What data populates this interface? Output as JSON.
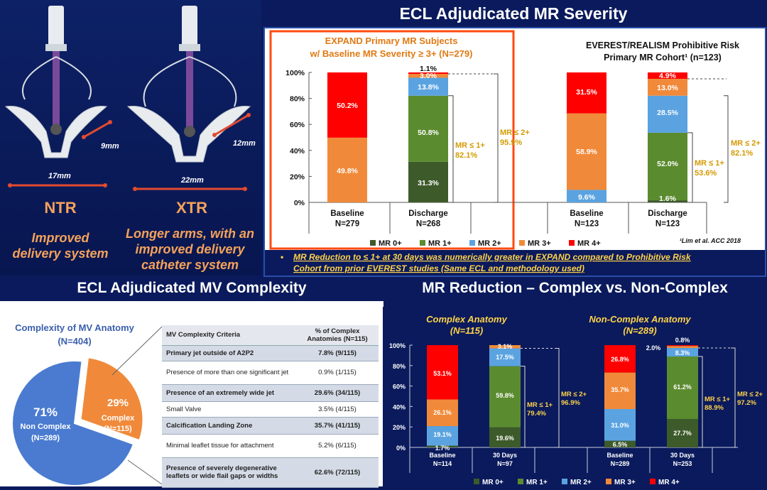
{
  "top_title": "ECL Adjudicated MR Severity",
  "devices": {
    "ntr": {
      "name": "NTR",
      "desc_line1": "Improved",
      "desc_line2": "delivery system",
      "arm": "9mm",
      "width": "17mm"
    },
    "xtr": {
      "name": "XTR",
      "desc_line1": "Longer arms, with an",
      "desc_line2": "improved delivery",
      "desc_line3": "catheter system",
      "arm": "12mm",
      "width": "22mm"
    }
  },
  "expand_heading_line1": "EXPAND Primary MR Subjects",
  "expand_heading_line2": "w/ Baseline MR Severity ≥ 3+ (N=279)",
  "everest_heading_line1": "EVEREST/REALISM Prohibitive Risk",
  "everest_heading_line2": "Primary MR Cohort¹ (n=123)",
  "citation": "¹Lim et al. ACC 2018",
  "bullet_line1": "MR Reduction to ≤ 1+ at 30 days was numerically greater in EXPAND compared to Prohibitive Risk",
  "bullet_line2": "Cohort from prior EVEREST studies (Same ECL and methodology used)",
  "mv_title": "ECL Adjudicated MV Complexity",
  "mrr_title": "MR Reduction – Complex vs. Non-Complex",
  "pie": {
    "title_line1": "Complexity of MV Anatomy",
    "title_line2": "(N=404)",
    "non_complex": {
      "pct": "71%",
      "label": "Non Complex",
      "n": "(N=289)",
      "value": 71.5
    },
    "complex": {
      "pct": "29%",
      "label": "Complex",
      "n": "(N=115)",
      "value": 28.5
    }
  },
  "criteria_table": {
    "header_col1": "MV Complexity Criteria",
    "header_col2_line1": "% of Complex",
    "header_col2_line2": "Anatomies (N=115)",
    "rows": [
      {
        "c1": "Primary jet outside of A2P2",
        "c2": "7.8% (9/115)",
        "bold": true
      },
      {
        "c1": "Presence of more than one significant jet",
        "c2": "0.9% (1/115)",
        "bold": false
      },
      {
        "c1": "Presence of an extremely wide jet",
        "c2": "29.6% (34/115)",
        "bold": true
      },
      {
        "c1": "Small Valve",
        "c2": "3.5% (4/115)",
        "bold": false
      },
      {
        "c1": "Calcification Landing Zone",
        "c2": "35.7% (41/115)",
        "bold": true
      },
      {
        "c1": "Minimal leaflet tissue for attachment",
        "c2": "5.2% (6/115)",
        "bold": false
      },
      {
        "c1": "Presence of severely degenerative leaflets or wide flail gaps or widths",
        "c2": "62.6% (72/115)",
        "bold": true
      }
    ]
  },
  "colors": {
    "mr0": "#3d5a2a",
    "mr1": "#5b8b2f",
    "mr2": "#5aa3e0",
    "mr3": "#f08a3a",
    "mr4": "#ff0000",
    "gold": "#ffd24a",
    "orange": "#f5a25a"
  },
  "chart_data": [
    {
      "type": "bar",
      "stacked": true,
      "categories": [
        "Baseline N=279",
        "Discharge N=268",
        "Baseline N=123",
        "Discharge N=123"
      ],
      "ylim": [
        0,
        100
      ],
      "yticks": [
        "0%",
        "20%",
        "40%",
        "60%",
        "80%",
        "100%"
      ],
      "legend": [
        "MR 0+",
        "MR 1+",
        "MR 2+",
        "MR 3+",
        "MR 4+"
      ],
      "series": [
        {
          "name": "MR 0+",
          "values": [
            0,
            31.3,
            0,
            1.6
          ]
        },
        {
          "name": "MR 1+",
          "values": [
            0,
            50.8,
            0,
            52.0
          ]
        },
        {
          "name": "MR 2+",
          "values": [
            0,
            13.8,
            9.6,
            28.5
          ]
        },
        {
          "name": "MR 3+",
          "values": [
            49.8,
            3.0,
            58.9,
            13.0
          ]
        },
        {
          "name": "MR 4+",
          "values": [
            50.2,
            1.1,
            31.5,
            4.9
          ]
        }
      ],
      "annotations": [
        "MR ≤ 1+ 82.1%",
        "MR ≤ 2+ 95.9%",
        "MR ≤ 1+ 53.6%",
        "MR ≤ 2+ 82.1%"
      ]
    },
    {
      "type": "bar",
      "stacked": true,
      "groups": [
        "Complex Anatomy (N=115)",
        "Non-Complex Anatomy (N=289)"
      ],
      "categories": [
        "Baseline N=114",
        "30 Days N=97",
        "Baseline N=289",
        "30 Days N=253"
      ],
      "ylim": [
        0,
        100
      ],
      "yticks": [
        "0%",
        "20%",
        "40%",
        "60%",
        "80%",
        "100%"
      ],
      "legend": [
        "MR 0+",
        "MR 1+",
        "MR 2+",
        "MR 3+",
        "MR 4+"
      ],
      "series": [
        {
          "name": "MR 0+",
          "values": [
            1.7,
            19.6,
            6.5,
            27.7
          ]
        },
        {
          "name": "MR 1+",
          "values": [
            0,
            59.8,
            0,
            61.2
          ]
        },
        {
          "name": "MR 2+",
          "values": [
            19.1,
            17.5,
            31.0,
            8.3
          ]
        },
        {
          "name": "MR 3+",
          "values": [
            26.1,
            3.1,
            35.7,
            2.0
          ]
        },
        {
          "name": "MR 4+",
          "values": [
            53.1,
            0,
            26.8,
            0.8
          ]
        }
      ],
      "annotations": [
        "MR ≤ 1+ 79.4%",
        "MR ≤ 2+ 96.9%",
        "MR ≤ 1+ 88.9%",
        "MR ≤ 2+ 97.2%"
      ]
    }
  ]
}
